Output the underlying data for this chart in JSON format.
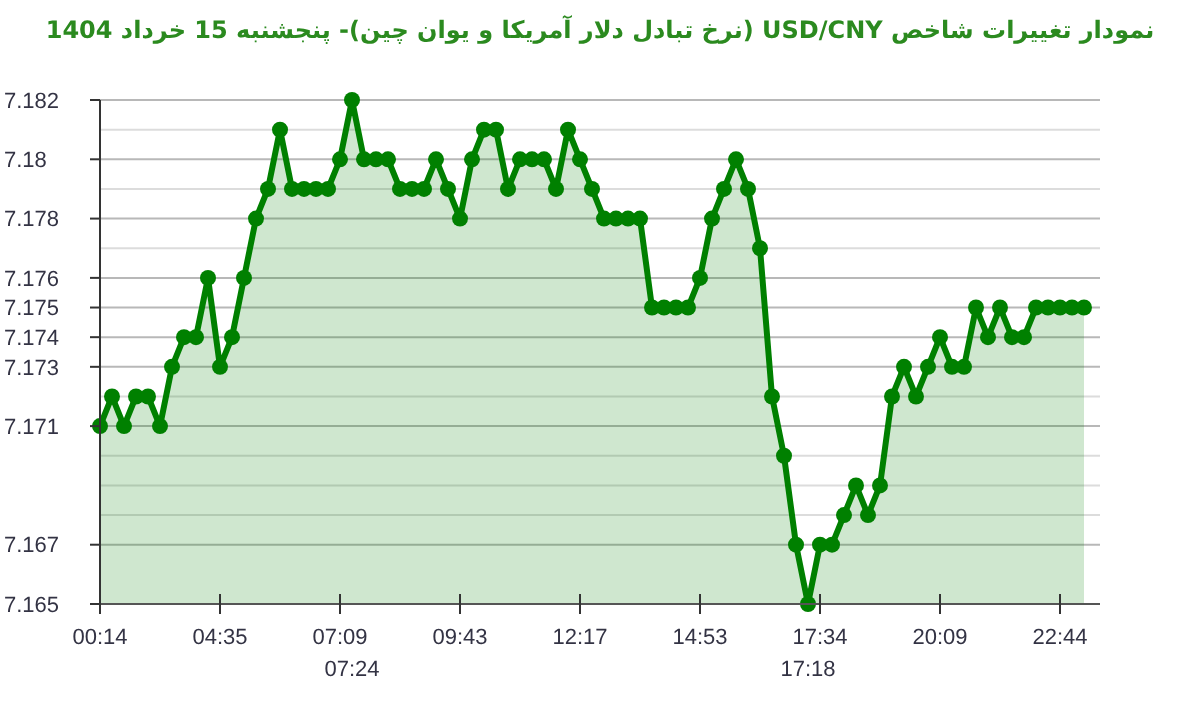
{
  "chart_data": {
    "type": "area",
    "title": "نمودار تغییرات شاخص USD/CNY (نرخ تبادل دلار آمریکا و یوان چین)- پنجشنبه 15 خرداد 1404",
    "categories": [
      "00:14",
      null,
      null,
      null,
      null,
      null,
      null,
      null,
      null,
      null,
      "04:35",
      null,
      null,
      null,
      null,
      null,
      null,
      null,
      null,
      null,
      "07:09",
      "07:24",
      null,
      null,
      null,
      null,
      null,
      null,
      null,
      null,
      "09:43",
      null,
      null,
      null,
      null,
      null,
      null,
      null,
      null,
      null,
      "12:17",
      null,
      null,
      null,
      null,
      null,
      null,
      null,
      null,
      null,
      "14:53",
      null,
      null,
      null,
      null,
      null,
      null,
      null,
      null,
      "17:18",
      "17:34",
      null,
      null,
      null,
      null,
      null,
      null,
      null,
      null,
      null,
      "20:09",
      null,
      null,
      null,
      null,
      null,
      null,
      null,
      null,
      null,
      "22:44",
      null,
      null
    ],
    "series": [
      {
        "color": "#008000",
        "values": [
          7.171,
          7.172,
          7.171,
          7.172,
          7.172,
          7.171,
          7.173,
          7.174,
          7.174,
          7.176,
          7.173,
          7.174,
          7.176,
          7.178,
          7.179,
          7.181,
          7.179,
          7.179,
          7.179,
          7.179,
          7.18,
          7.182,
          7.18,
          7.18,
          7.18,
          7.179,
          7.179,
          7.179,
          7.18,
          7.179,
          7.178,
          7.18,
          7.181,
          7.181,
          7.179,
          7.18,
          7.18,
          7.18,
          7.179,
          7.181,
          7.18,
          7.179,
          7.178,
          7.178,
          7.178,
          7.178,
          7.175,
          7.175,
          7.175,
          7.175,
          7.176,
          7.178,
          7.179,
          7.18,
          7.179,
          7.177,
          7.172,
          7.17,
          7.167,
          7.165,
          7.167,
          7.167,
          7.168,
          7.169,
          7.168,
          7.169,
          7.172,
          7.173,
          7.172,
          7.173,
          7.174,
          7.173,
          7.173,
          7.175,
          7.174,
          7.175,
          7.174,
          7.174,
          7.175,
          7.175,
          7.175,
          7.175,
          7.175
        ]
      }
    ],
    "ylim": [
      7.165,
      7.182
    ],
    "yticks": [
      7.165,
      7.167,
      {
        "value": 7.168,
        "label": null
      },
      {
        "value": 7.169,
        "label": null
      },
      {
        "value": 7.17,
        "label": null
      },
      7.171,
      {
        "value": 7.172,
        "label": null
      },
      7.173,
      7.174,
      7.175,
      7.176,
      {
        "value": 7.177,
        "label": null
      },
      7.178,
      {
        "value": 7.179,
        "label": null
      },
      7.18,
      {
        "value": 7.181,
        "label": null
      },
      7.182
    ],
    "grid": "y",
    "marker": "circle",
    "line_style": "solid"
  }
}
